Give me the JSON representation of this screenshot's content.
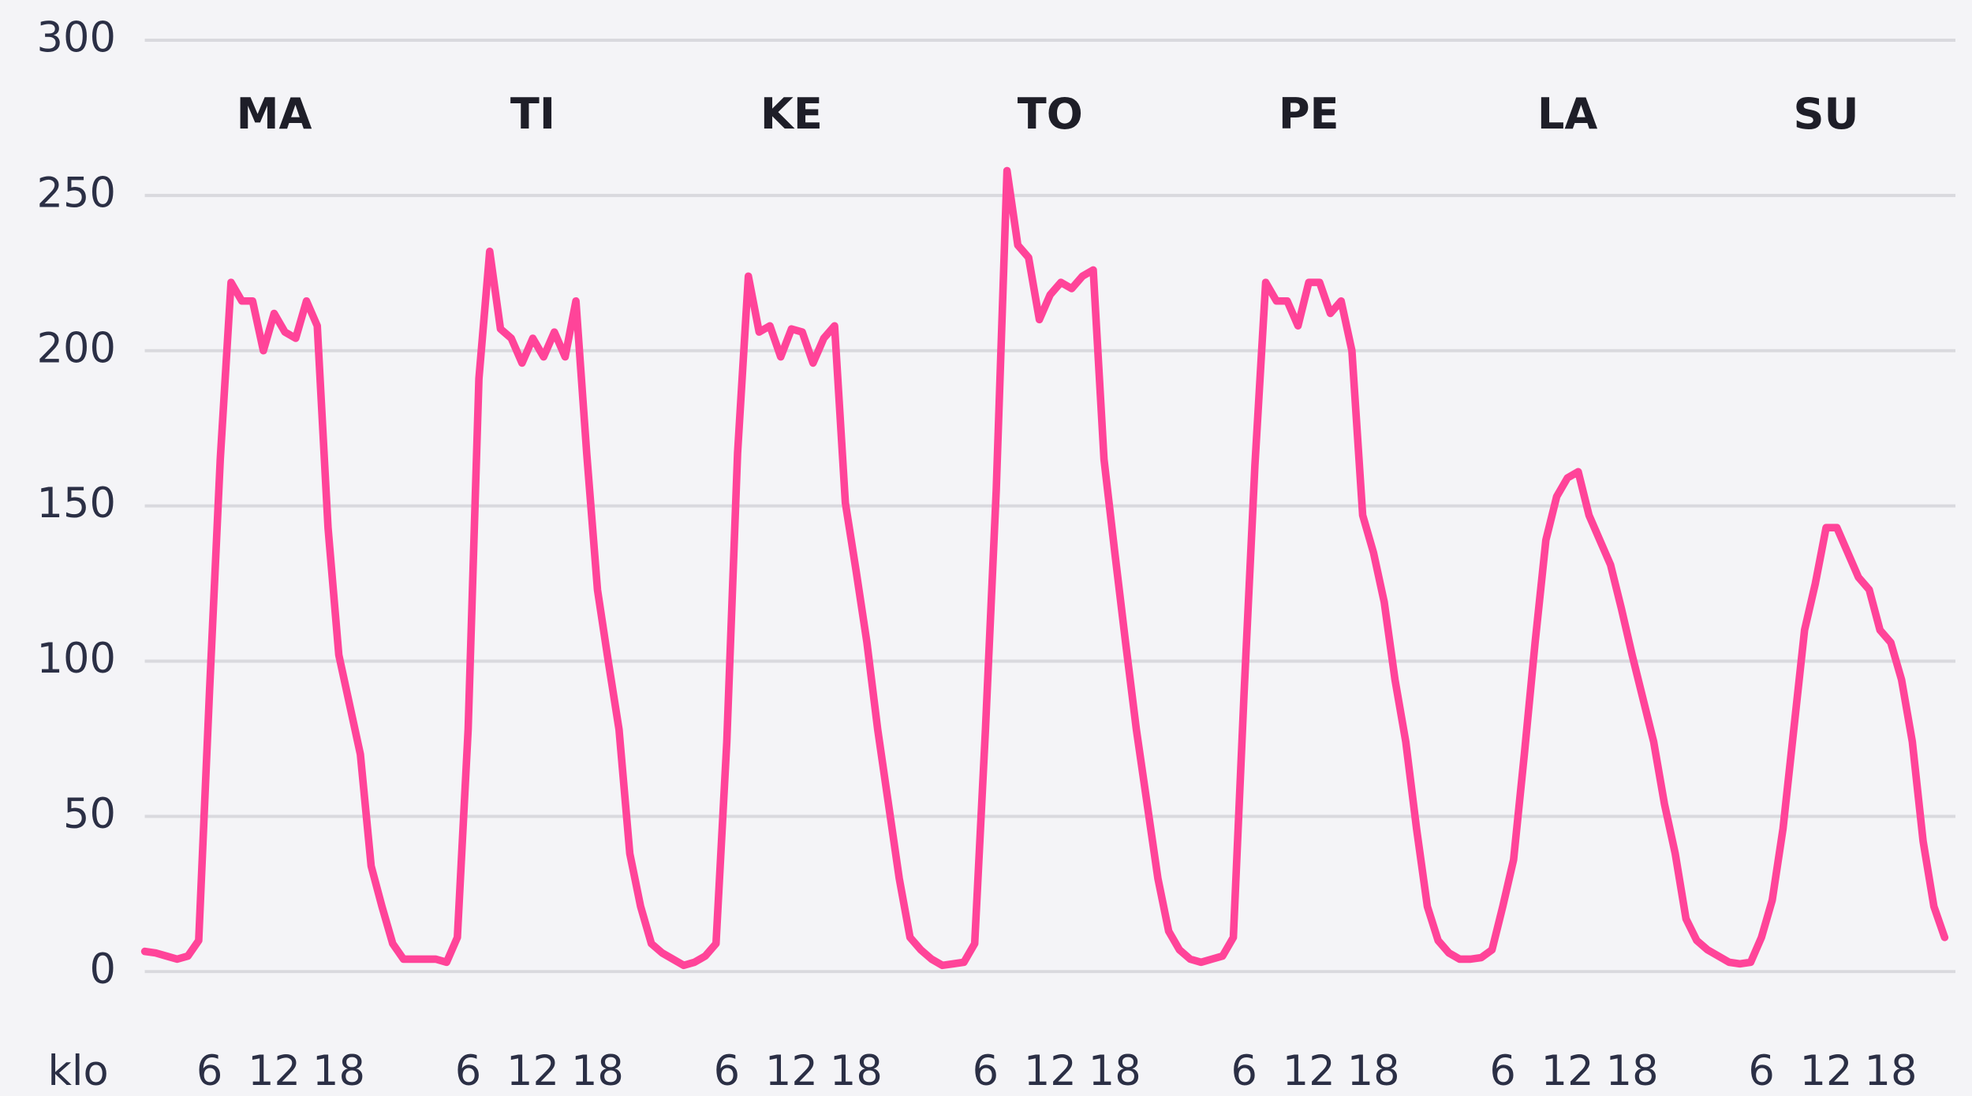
{
  "chart_data": {
    "type": "line",
    "x_label": "klo",
    "days": [
      "MA",
      "TI",
      "KE",
      "TO",
      "PE",
      "LA",
      "SU"
    ],
    "x": [
      0,
      1,
      2,
      3,
      4,
      5,
      6,
      7,
      8,
      9,
      10,
      11,
      12,
      13,
      14,
      15,
      16,
      17,
      18,
      19,
      20,
      21,
      22,
      23,
      24,
      25,
      26,
      27,
      28,
      29,
      30,
      31,
      32,
      33,
      34,
      35,
      36,
      37,
      38,
      39,
      40,
      41,
      42,
      43,
      44,
      45,
      46,
      47,
      48,
      49,
      50,
      51,
      52,
      53,
      54,
      55,
      56,
      57,
      58,
      59,
      60,
      61,
      62,
      63,
      64,
      65,
      66,
      67,
      68,
      69,
      70,
      71,
      72,
      73,
      74,
      75,
      76,
      77,
      78,
      79,
      80,
      81,
      82,
      83,
      84,
      85,
      86,
      87,
      88,
      89,
      90,
      91,
      92,
      93,
      94,
      95,
      96,
      97,
      98,
      99,
      100,
      101,
      102,
      103,
      104,
      105,
      106,
      107,
      108,
      109,
      110,
      111,
      112,
      113,
      114,
      115,
      116,
      117,
      118,
      119,
      120,
      121,
      122,
      123,
      124,
      125,
      126,
      127,
      128,
      129,
      130,
      131,
      132,
      133,
      134,
      135,
      136,
      137,
      138,
      139,
      140,
      141,
      142,
      143,
      144,
      145,
      146,
      147,
      148,
      149,
      150,
      151,
      152,
      153,
      154,
      155,
      156,
      157,
      158,
      159,
      160,
      161,
      162,
      163,
      164,
      165,
      166,
      167
    ],
    "series": [
      {
        "name": "",
        "color": "#ff4499",
        "values": [
          6.5,
          6,
          5,
          4,
          5,
          10,
          90,
          165,
          222,
          216,
          216,
          200,
          212,
          206,
          204,
          216,
          208,
          143,
          102,
          86,
          70,
          34,
          21,
          9,
          4,
          4,
          4,
          4,
          3,
          11,
          78,
          191,
          232,
          207,
          204,
          196,
          204,
          198,
          206,
          198,
          216,
          167,
          123,
          100,
          78,
          38,
          21,
          9,
          6,
          4,
          2,
          3,
          5,
          9,
          74,
          167,
          224,
          206,
          208,
          198,
          207,
          206,
          196,
          204,
          208,
          151,
          129,
          106,
          78,
          54,
          30,
          11,
          7,
          4,
          2,
          2.5,
          3,
          9,
          78,
          155,
          258,
          234,
          230,
          210,
          218,
          222,
          220,
          224,
          226,
          165,
          135,
          106,
          78,
          54,
          30,
          13,
          7,
          4,
          3,
          4,
          5,
          11,
          90,
          163,
          222,
          216,
          216,
          208,
          222,
          222,
          212,
          216,
          200,
          147,
          135,
          119,
          94,
          74,
          46,
          21,
          10,
          6,
          4,
          4,
          4.5,
          7,
          21,
          36,
          70,
          106,
          139,
          153,
          159,
          161,
          147,
          139,
          131,
          117,
          102,
          88,
          74,
          54,
          38,
          17,
          10,
          7,
          5,
          3,
          2.5,
          3,
          11,
          23,
          46,
          78,
          110,
          125,
          143,
          143,
          135,
          127,
          123,
          110,
          106,
          94,
          74,
          42,
          21,
          11
        ]
      }
    ],
    "xlim": [
      0,
      168
    ],
    "xticks": [
      6,
      12,
      18,
      {
        "value": 30,
        "label": "6"
      },
      {
        "value": 36,
        "label": "12"
      },
      {
        "value": 42,
        "label": "18"
      },
      {
        "value": 54,
        "label": "6"
      },
      {
        "value": 60,
        "label": "12"
      },
      {
        "value": 66,
        "label": "18"
      },
      {
        "value": 78,
        "label": "6"
      },
      {
        "value": 84,
        "label": "12"
      },
      {
        "value": 90,
        "label": "18"
      },
      {
        "value": 102,
        "label": "6"
      },
      {
        "value": 108,
        "label": "12"
      },
      {
        "value": 114,
        "label": "18"
      },
      {
        "value": 126,
        "label": "6"
      },
      {
        "value": 132,
        "label": "12"
      },
      {
        "value": 138,
        "label": "18"
      },
      {
        "value": 150,
        "label": "6"
      },
      {
        "value": 156,
        "label": "12"
      },
      {
        "value": 162,
        "label": "18"
      }
    ],
    "ylim": [
      0,
      300
    ],
    "yticks": [
      0,
      50,
      100,
      150,
      200,
      250,
      300
    ],
    "grid": true
  }
}
